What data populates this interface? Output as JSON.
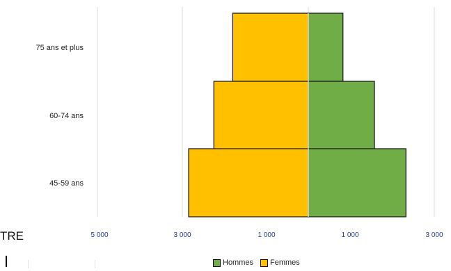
{
  "page_fragment": {
    "left_text": "TRE"
  },
  "chart_data": {
    "type": "bar",
    "orientation": "horizontal",
    "stacking": "population-pyramid",
    "categories": [
      "75 ans et plus",
      "60-74 ans",
      "45-59 ans"
    ],
    "series": [
      {
        "name": "Hommes",
        "side": "right",
        "color": "#70ad47",
        "values": [
          550,
          1050,
          1550
        ]
      },
      {
        "name": "Femmes",
        "side": "left",
        "color": "#ffc000",
        "values": [
          1200,
          1500,
          1900
        ]
      }
    ],
    "x_ticks": [
      "5 000",
      "3 000",
      "1 000",
      "1 000",
      "3 000"
    ],
    "xlim": [
      -3300,
      3300
    ],
    "grid": true,
    "legend": {
      "position": "bottom",
      "entries": [
        "Hommes",
        "Femmes"
      ]
    }
  }
}
